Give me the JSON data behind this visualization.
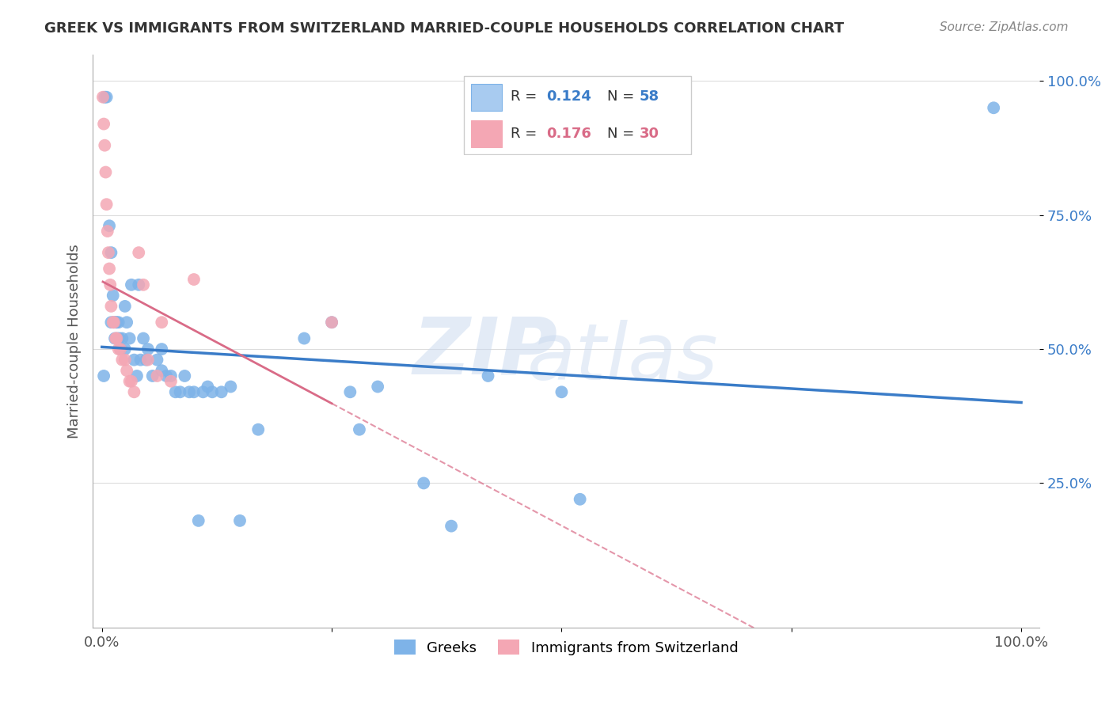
{
  "title": "GREEK VS IMMIGRANTS FROM SWITZERLAND MARRIED-COUPLE HOUSEHOLDS CORRELATION CHART",
  "source": "Source: ZipAtlas.com",
  "ylabel": "Married-couple Households",
  "blue_R": 0.124,
  "blue_N": 58,
  "pink_R": 0.176,
  "pink_N": 30,
  "blue_color": "#7EB3E8",
  "pink_color": "#F4A7B4",
  "blue_line_color": "#3A7CC8",
  "pink_line_color": "#D96B87",
  "label_blue": "Greeks",
  "label_pink": "Immigrants from Switzerland",
  "watermark_zip": "ZIP",
  "watermark_atlas": "atlas",
  "blue_x": [
    0.003,
    0.005,
    0.008,
    0.01,
    0.01,
    0.012,
    0.013,
    0.014,
    0.015,
    0.016,
    0.017,
    0.018,
    0.019,
    0.02,
    0.022,
    0.025,
    0.025,
    0.027,
    0.03,
    0.032,
    0.035,
    0.038,
    0.04,
    0.042,
    0.045,
    0.048,
    0.05,
    0.055,
    0.06,
    0.065,
    0.07,
    0.075,
    0.08,
    0.085,
    0.09,
    0.095,
    0.1,
    0.105,
    0.11,
    0.115,
    0.12,
    0.13,
    0.14,
    0.15,
    0.17,
    0.22,
    0.25,
    0.28,
    0.35,
    0.38,
    0.42,
    0.5,
    0.52,
    0.27,
    0.3,
    0.065,
    0.97,
    0.002
  ],
  "blue_y": [
    0.97,
    0.97,
    0.73,
    0.68,
    0.55,
    0.6,
    0.55,
    0.52,
    0.55,
    0.55,
    0.52,
    0.55,
    0.52,
    0.5,
    0.52,
    0.58,
    0.5,
    0.55,
    0.52,
    0.62,
    0.48,
    0.45,
    0.62,
    0.48,
    0.52,
    0.48,
    0.5,
    0.45,
    0.48,
    0.5,
    0.45,
    0.45,
    0.42,
    0.42,
    0.45,
    0.42,
    0.42,
    0.18,
    0.42,
    0.43,
    0.42,
    0.42,
    0.43,
    0.18,
    0.35,
    0.52,
    0.55,
    0.35,
    0.25,
    0.17,
    0.45,
    0.42,
    0.22,
    0.42,
    0.43,
    0.46,
    0.95,
    0.45
  ],
  "pink_x": [
    0.001,
    0.002,
    0.003,
    0.004,
    0.005,
    0.006,
    0.007,
    0.008,
    0.009,
    0.01,
    0.012,
    0.013,
    0.015,
    0.016,
    0.018,
    0.02,
    0.022,
    0.025,
    0.027,
    0.03,
    0.032,
    0.035,
    0.04,
    0.045,
    0.05,
    0.06,
    0.065,
    0.075,
    0.1,
    0.25
  ],
  "pink_y": [
    0.97,
    0.92,
    0.88,
    0.83,
    0.77,
    0.72,
    0.68,
    0.65,
    0.62,
    0.58,
    0.55,
    0.55,
    0.52,
    0.52,
    0.5,
    0.5,
    0.48,
    0.48,
    0.46,
    0.44,
    0.44,
    0.42,
    0.68,
    0.62,
    0.48,
    0.45,
    0.55,
    0.44,
    0.63,
    0.55
  ]
}
